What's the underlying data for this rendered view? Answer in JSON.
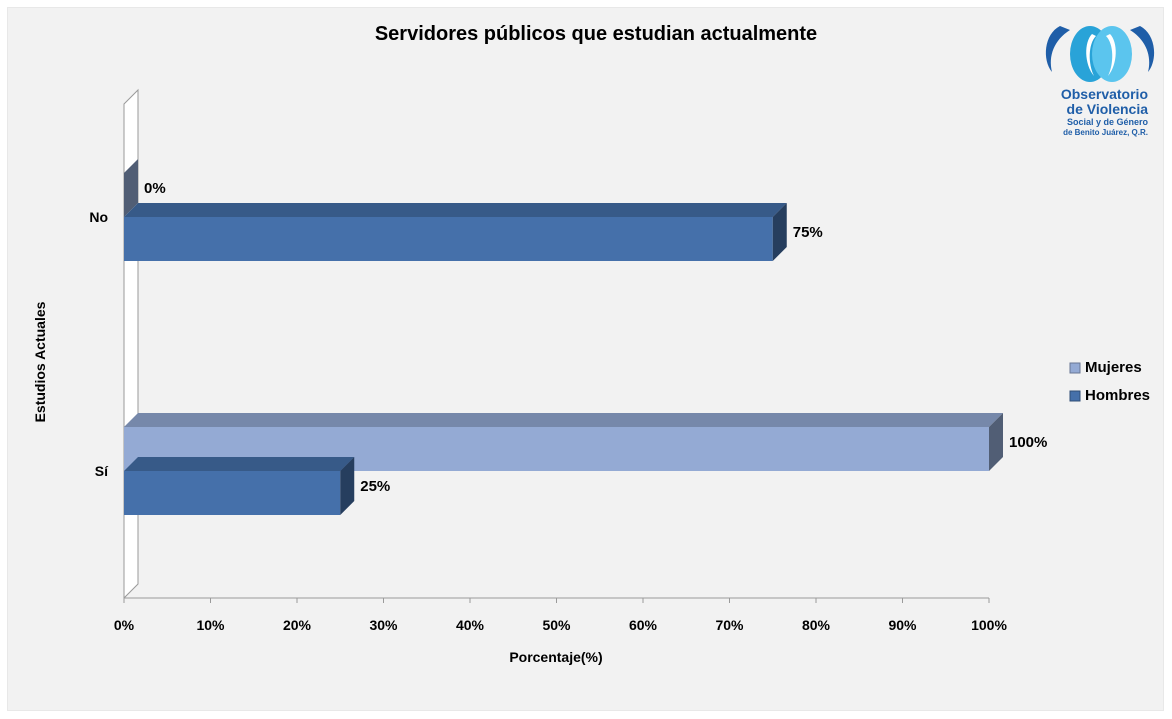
{
  "chart_data": {
    "type": "bar",
    "orientation": "horizontal",
    "title": "Servidores públicos que estudian actualmente",
    "xlabel": "Porcentaje(%)",
    "ylabel": "Estudios Actuales",
    "categories": [
      "No",
      "Sí"
    ],
    "series": [
      {
        "name": "Mujeres",
        "values": [
          0,
          100
        ],
        "color": "#94aad4"
      },
      {
        "name": "Hombres",
        "values": [
          75,
          25
        ],
        "color": "#4570aa"
      }
    ],
    "data_labels": {
      "Mujeres": [
        "0%",
        "100%"
      ],
      "Hombres": [
        "75%",
        "25%"
      ]
    },
    "xlim": [
      0,
      100
    ],
    "x_ticks": [
      "0%",
      "10%",
      "20%",
      "30%",
      "40%",
      "50%",
      "60%",
      "70%",
      "80%",
      "90%",
      "100%"
    ],
    "grid": false,
    "legend_position": "right"
  },
  "logo": {
    "line1": "Observatorio",
    "line2": "de Violencia",
    "line3": "Social y de Género",
    "line4": "de Benito Juárez, Q.R."
  }
}
